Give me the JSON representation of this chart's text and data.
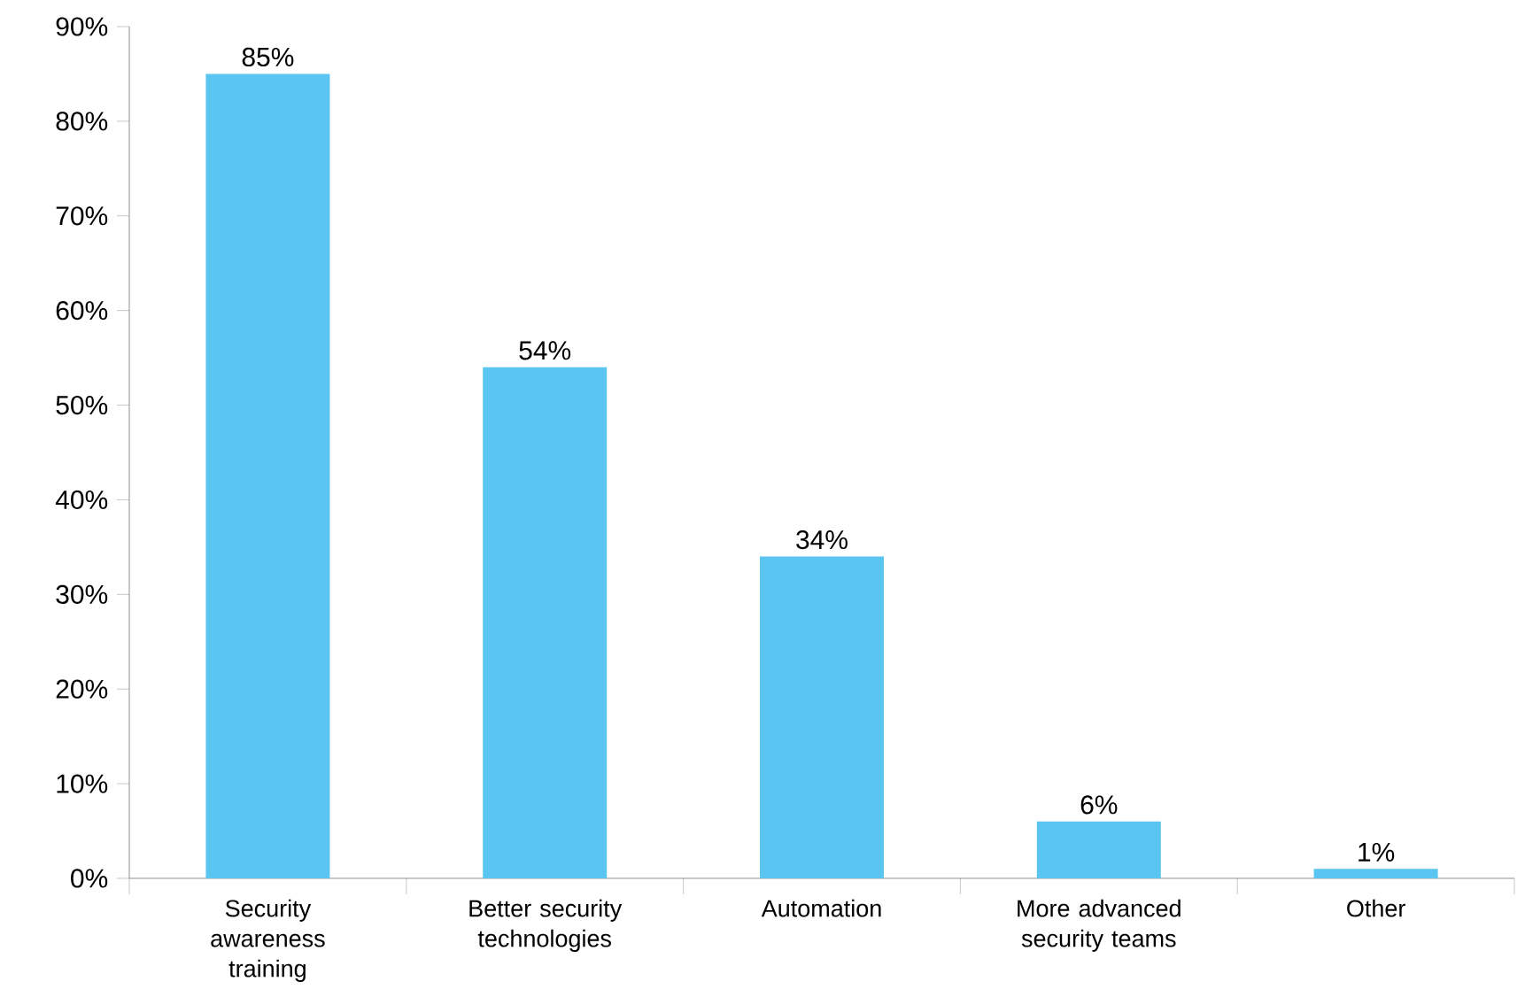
{
  "chart_data": {
    "type": "bar",
    "categories": [
      "Security awareness training",
      "Better security technologies",
      "Automation",
      "More advanced security teams",
      "Other"
    ],
    "values": [
      85,
      54,
      34,
      6,
      1
    ],
    "value_labels": [
      "85%",
      "54%",
      "34%",
      "6%",
      "1%"
    ],
    "color": "#5bc5f2",
    "ylim": [
      0,
      90
    ],
    "yticks": [
      {
        "value": 0,
        "label": "0%"
      },
      {
        "value": 10,
        "label": "10%"
      },
      {
        "value": 20,
        "label": "20%"
      },
      {
        "value": 30,
        "label": "30%"
      },
      {
        "value": 40,
        "label": "40%"
      },
      {
        "value": 50,
        "label": "50%"
      },
      {
        "value": 60,
        "label": "60%"
      },
      {
        "value": 70,
        "label": "70%"
      },
      {
        "value": 80,
        "label": "80%"
      },
      {
        "value": 90,
        "label": "90%"
      }
    ],
    "grid": false,
    "legend": false
  }
}
